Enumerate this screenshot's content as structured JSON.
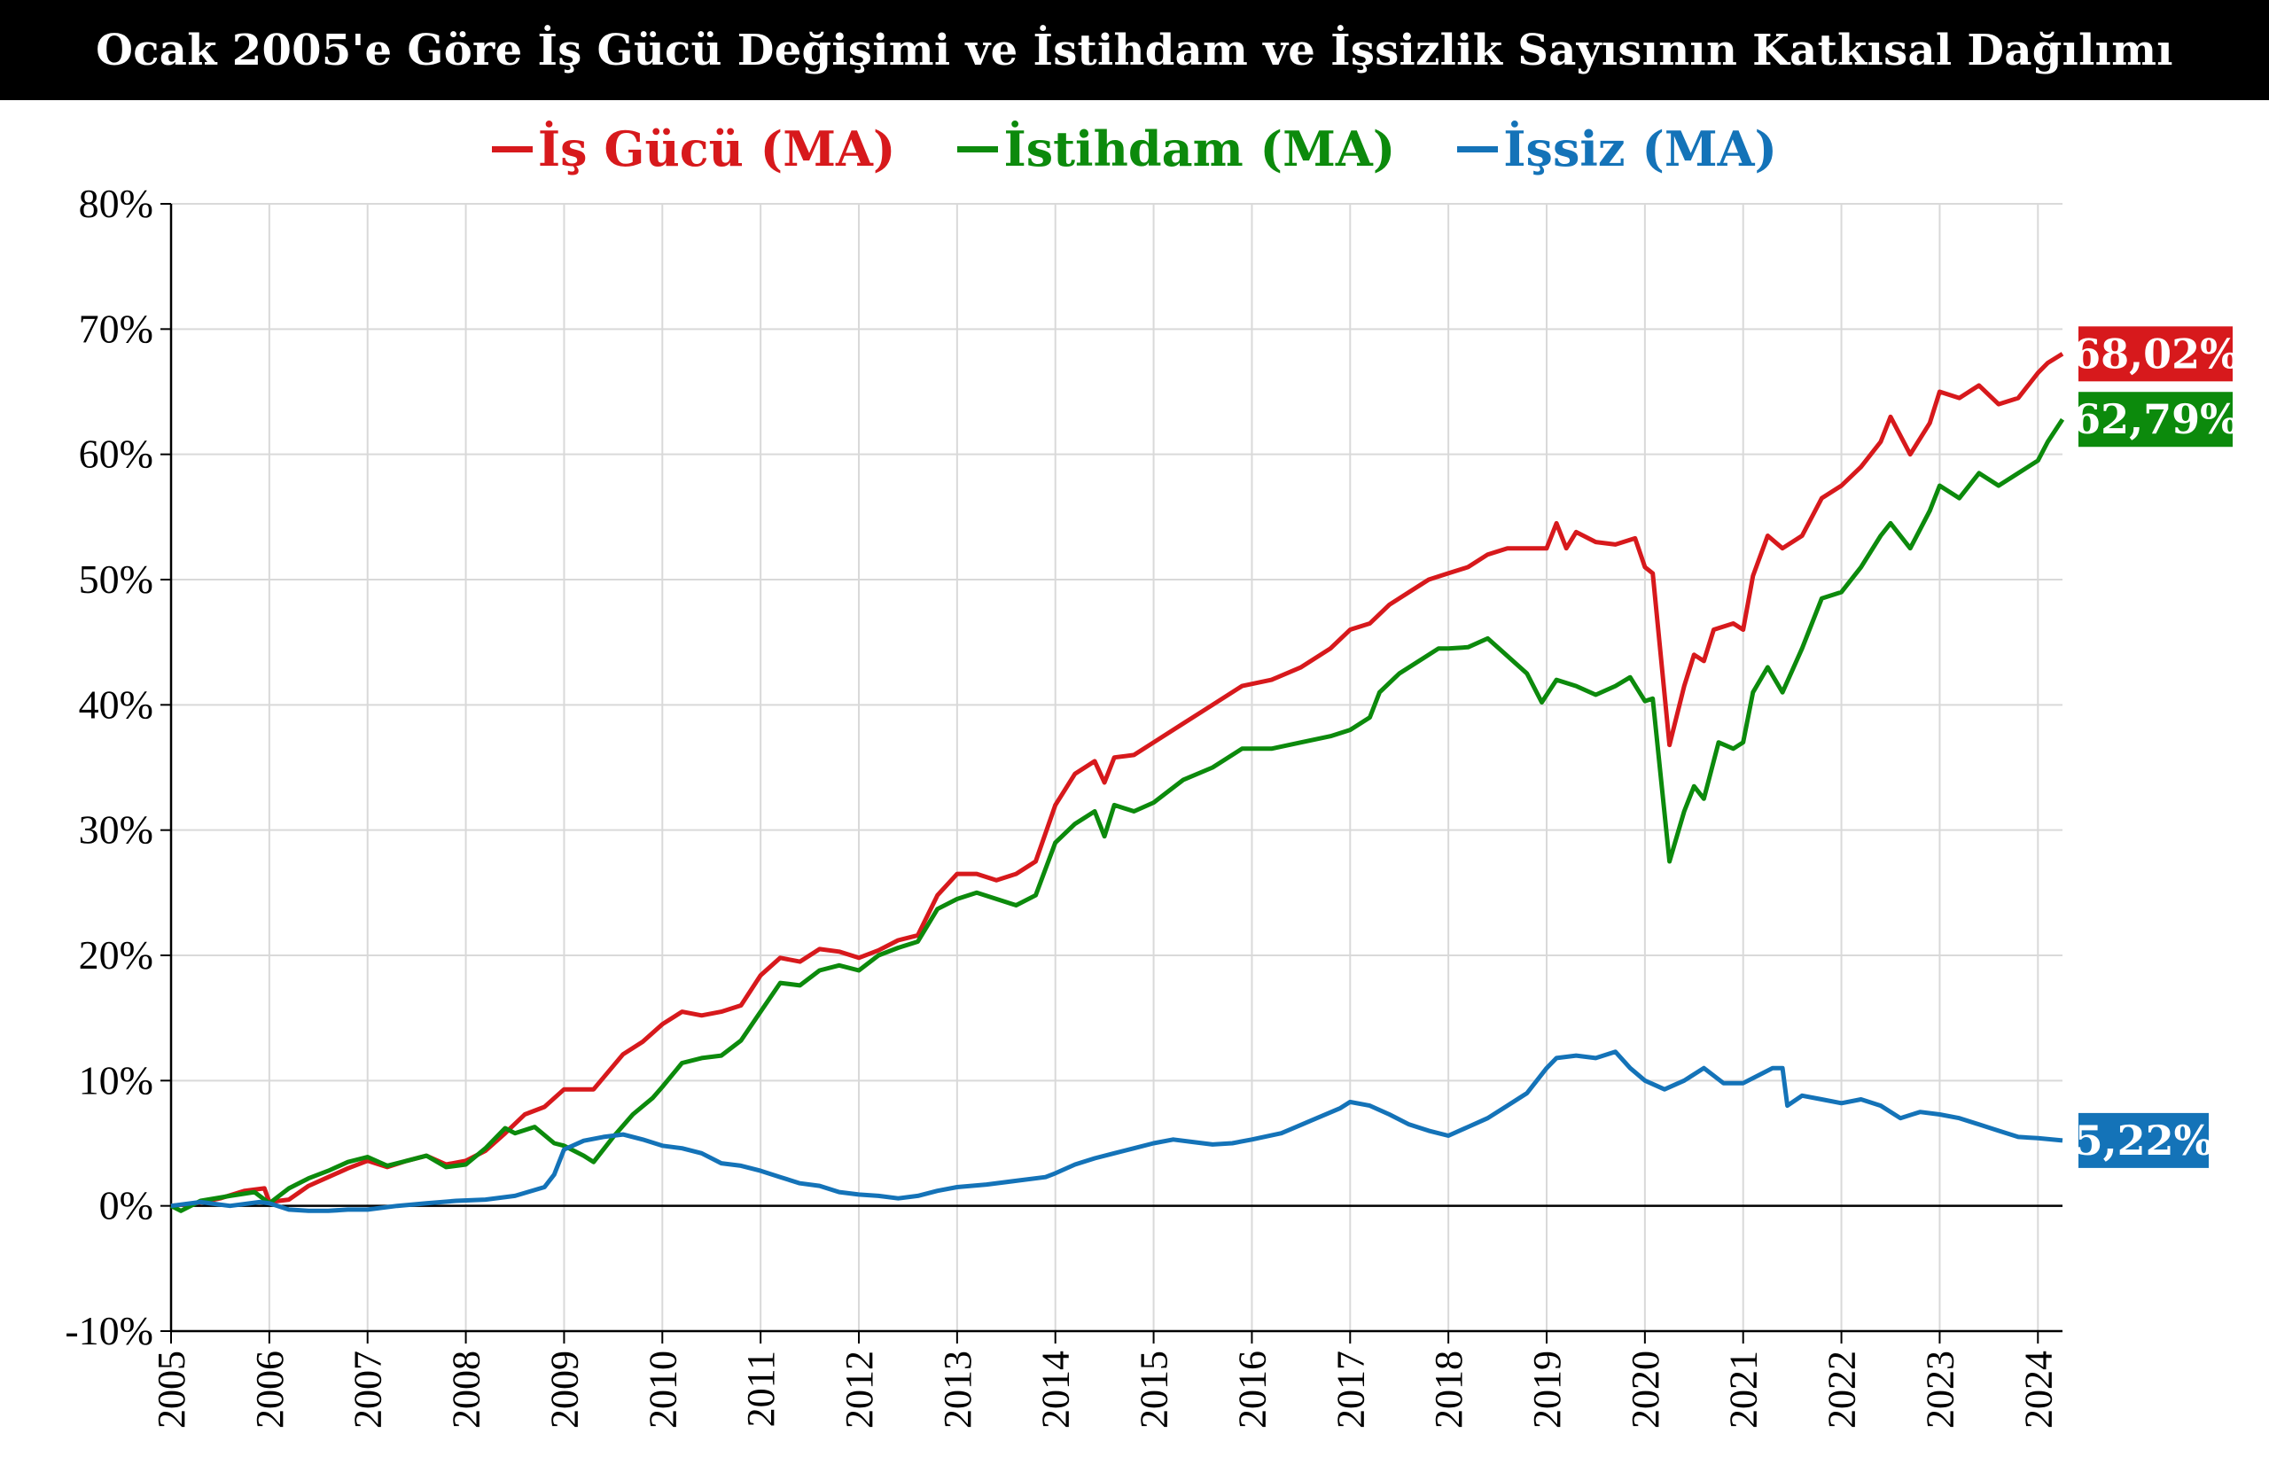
{
  "chart_data": {
    "type": "line",
    "title": "Ocak 2005'e Göre İş Gücü Değişimi ve İstihdam ve İşsizlik Sayısının Katkısal Dağılımı",
    "xlabel": "",
    "ylabel": "",
    "ylim": [
      -10,
      80
    ],
    "xlim": [
      2005,
      2024.25
    ],
    "y_ticks": [
      "-10%",
      "0%",
      "10%",
      "20%",
      "30%",
      "40%",
      "50%",
      "60%",
      "70%",
      "80%"
    ],
    "x_ticks": [
      "2005",
      "2006",
      "2007",
      "2008",
      "2009",
      "2010",
      "2011",
      "2012",
      "2013",
      "2014",
      "2015",
      "2016",
      "2017",
      "2018",
      "2019",
      "2020",
      "2021",
      "2022",
      "2023",
      "2024"
    ],
    "grid": true,
    "legend_position": "top-center",
    "series": [
      {
        "name": "İş Gücü (MA)",
        "color": "#d7191c",
        "end_label": "68,02%",
        "points": [
          [
            2005.0,
            0.0
          ],
          [
            2005.25,
            0.2
          ],
          [
            2005.5,
            0.6
          ],
          [
            2005.75,
            1.2
          ],
          [
            2005.95,
            1.4
          ],
          [
            2006.0,
            0.3
          ],
          [
            2006.2,
            0.5
          ],
          [
            2006.4,
            1.6
          ],
          [
            2006.6,
            2.3
          ],
          [
            2006.8,
            3.0
          ],
          [
            2007.0,
            3.6
          ],
          [
            2007.2,
            3.1
          ],
          [
            2007.4,
            3.6
          ],
          [
            2007.6,
            4.0
          ],
          [
            2007.8,
            3.3
          ],
          [
            2008.0,
            3.6
          ],
          [
            2008.2,
            4.4
          ],
          [
            2008.4,
            5.8
          ],
          [
            2008.6,
            7.3
          ],
          [
            2008.8,
            7.9
          ],
          [
            2009.0,
            9.3
          ],
          [
            2009.3,
            9.3
          ],
          [
            2009.6,
            12.1
          ],
          [
            2009.8,
            13.1
          ],
          [
            2010.0,
            14.5
          ],
          [
            2010.2,
            15.5
          ],
          [
            2010.4,
            15.2
          ],
          [
            2010.6,
            15.5
          ],
          [
            2010.8,
            16.0
          ],
          [
            2011.0,
            18.4
          ],
          [
            2011.2,
            19.8
          ],
          [
            2011.4,
            19.5
          ],
          [
            2011.6,
            20.5
          ],
          [
            2011.8,
            20.3
          ],
          [
            2012.0,
            19.8
          ],
          [
            2012.2,
            20.4
          ],
          [
            2012.4,
            21.2
          ],
          [
            2012.6,
            21.6
          ],
          [
            2012.8,
            24.8
          ],
          [
            2013.0,
            26.5
          ],
          [
            2013.2,
            26.5
          ],
          [
            2013.4,
            26.0
          ],
          [
            2013.6,
            26.5
          ],
          [
            2013.8,
            27.5
          ],
          [
            2014.0,
            32.0
          ],
          [
            2014.2,
            34.5
          ],
          [
            2014.4,
            35.5
          ],
          [
            2014.5,
            33.8
          ],
          [
            2014.6,
            35.8
          ],
          [
            2014.8,
            36.0
          ],
          [
            2015.0,
            37.0
          ],
          [
            2015.3,
            38.5
          ],
          [
            2015.6,
            40.0
          ],
          [
            2015.9,
            41.5
          ],
          [
            2016.2,
            42.0
          ],
          [
            2016.5,
            43.0
          ],
          [
            2016.8,
            44.5
          ],
          [
            2017.0,
            46.0
          ],
          [
            2017.2,
            46.5
          ],
          [
            2017.4,
            48.0
          ],
          [
            2017.6,
            49.0
          ],
          [
            2017.8,
            50.0
          ],
          [
            2018.0,
            50.5
          ],
          [
            2018.2,
            51.0
          ],
          [
            2018.4,
            52.0
          ],
          [
            2018.6,
            52.5
          ],
          [
            2018.8,
            52.5
          ],
          [
            2019.0,
            52.5
          ],
          [
            2019.1,
            54.5
          ],
          [
            2019.2,
            52.5
          ],
          [
            2019.3,
            53.8
          ],
          [
            2019.5,
            53.0
          ],
          [
            2019.7,
            52.8
          ],
          [
            2019.9,
            53.3
          ],
          [
            2020.0,
            51.0
          ],
          [
            2020.08,
            50.5
          ],
          [
            2020.25,
            36.8
          ],
          [
            2020.4,
            41.5
          ],
          [
            2020.5,
            44.0
          ],
          [
            2020.6,
            43.5
          ],
          [
            2020.7,
            46.0
          ],
          [
            2020.9,
            46.5
          ],
          [
            2021.0,
            46.0
          ],
          [
            2021.1,
            50.3
          ],
          [
            2021.25,
            53.5
          ],
          [
            2021.4,
            52.5
          ],
          [
            2021.6,
            53.5
          ],
          [
            2021.8,
            56.5
          ],
          [
            2022.0,
            57.5
          ],
          [
            2022.2,
            59.0
          ],
          [
            2022.4,
            61.0
          ],
          [
            2022.5,
            63.0
          ],
          [
            2022.7,
            60.0
          ],
          [
            2022.9,
            62.5
          ],
          [
            2023.0,
            65.0
          ],
          [
            2023.2,
            64.5
          ],
          [
            2023.4,
            65.5
          ],
          [
            2023.6,
            64.0
          ],
          [
            2023.8,
            64.5
          ],
          [
            2024.0,
            66.5
          ],
          [
            2024.1,
            67.3
          ],
          [
            2024.25,
            68.02
          ]
        ]
      },
      {
        "name": "İstihdam (MA)",
        "color": "#0c8a0c",
        "end_label": "62,79%",
        "points": [
          [
            2005.0,
            0.0
          ],
          [
            2005.1,
            -0.4
          ],
          [
            2005.3,
            0.4
          ],
          [
            2005.6,
            0.8
          ],
          [
            2005.85,
            1.1
          ],
          [
            2006.0,
            0.2
          ],
          [
            2006.2,
            1.4
          ],
          [
            2006.4,
            2.2
          ],
          [
            2006.6,
            2.8
          ],
          [
            2006.8,
            3.5
          ],
          [
            2007.0,
            3.9
          ],
          [
            2007.2,
            3.2
          ],
          [
            2007.4,
            3.6
          ],
          [
            2007.6,
            4.0
          ],
          [
            2007.8,
            3.1
          ],
          [
            2008.0,
            3.3
          ],
          [
            2008.2,
            4.6
          ],
          [
            2008.4,
            6.2
          ],
          [
            2008.5,
            5.8
          ],
          [
            2008.7,
            6.3
          ],
          [
            2008.9,
            5.0
          ],
          [
            2009.0,
            4.8
          ],
          [
            2009.2,
            4.0
          ],
          [
            2009.3,
            3.5
          ],
          [
            2009.5,
            5.5
          ],
          [
            2009.7,
            7.3
          ],
          [
            2009.9,
            8.6
          ],
          [
            2010.0,
            9.5
          ],
          [
            2010.2,
            11.4
          ],
          [
            2010.4,
            11.8
          ],
          [
            2010.6,
            12.0
          ],
          [
            2010.8,
            13.2
          ],
          [
            2011.0,
            15.5
          ],
          [
            2011.2,
            17.8
          ],
          [
            2011.4,
            17.6
          ],
          [
            2011.6,
            18.8
          ],
          [
            2011.8,
            19.2
          ],
          [
            2012.0,
            18.8
          ],
          [
            2012.2,
            20.0
          ],
          [
            2012.4,
            20.6
          ],
          [
            2012.6,
            21.1
          ],
          [
            2012.8,
            23.7
          ],
          [
            2013.0,
            24.5
          ],
          [
            2013.2,
            25.0
          ],
          [
            2013.4,
            24.5
          ],
          [
            2013.6,
            24.0
          ],
          [
            2013.8,
            24.8
          ],
          [
            2014.0,
            29.0
          ],
          [
            2014.2,
            30.5
          ],
          [
            2014.4,
            31.5
          ],
          [
            2014.5,
            29.5
          ],
          [
            2014.6,
            32.0
          ],
          [
            2014.8,
            31.5
          ],
          [
            2015.0,
            32.2
          ],
          [
            2015.3,
            34.0
          ],
          [
            2015.6,
            35.0
          ],
          [
            2015.9,
            36.5
          ],
          [
            2016.2,
            36.5
          ],
          [
            2016.5,
            37.0
          ],
          [
            2016.8,
            37.5
          ],
          [
            2017.0,
            38.0
          ],
          [
            2017.2,
            39.0
          ],
          [
            2017.3,
            41.0
          ],
          [
            2017.5,
            42.5
          ],
          [
            2017.7,
            43.5
          ],
          [
            2017.9,
            44.5
          ],
          [
            2018.0,
            44.5
          ],
          [
            2018.2,
            44.6
          ],
          [
            2018.4,
            45.3
          ],
          [
            2018.5,
            44.6
          ],
          [
            2018.8,
            42.5
          ],
          [
            2018.95,
            40.2
          ],
          [
            2019.1,
            42.0
          ],
          [
            2019.3,
            41.5
          ],
          [
            2019.5,
            40.8
          ],
          [
            2019.7,
            41.5
          ],
          [
            2019.85,
            42.2
          ],
          [
            2020.0,
            40.3
          ],
          [
            2020.08,
            40.5
          ],
          [
            2020.25,
            27.5
          ],
          [
            2020.4,
            31.5
          ],
          [
            2020.5,
            33.5
          ],
          [
            2020.6,
            32.5
          ],
          [
            2020.75,
            37.0
          ],
          [
            2020.9,
            36.5
          ],
          [
            2021.0,
            37.0
          ],
          [
            2021.1,
            41.0
          ],
          [
            2021.25,
            43.0
          ],
          [
            2021.4,
            41.0
          ],
          [
            2021.6,
            44.5
          ],
          [
            2021.8,
            48.5
          ],
          [
            2022.0,
            49.0
          ],
          [
            2022.2,
            51.0
          ],
          [
            2022.4,
            53.5
          ],
          [
            2022.5,
            54.5
          ],
          [
            2022.7,
            52.5
          ],
          [
            2022.9,
            55.5
          ],
          [
            2023.0,
            57.5
          ],
          [
            2023.2,
            56.5
          ],
          [
            2023.4,
            58.5
          ],
          [
            2023.6,
            57.5
          ],
          [
            2023.8,
            58.5
          ],
          [
            2024.0,
            59.5
          ],
          [
            2024.1,
            61.0
          ],
          [
            2024.25,
            62.79
          ]
        ]
      },
      {
        "name": "İşsiz (MA)",
        "color": "#1473b8",
        "end_label": "5,22%",
        "points": [
          [
            2005.0,
            0.0
          ],
          [
            2005.3,
            0.3
          ],
          [
            2005.6,
            0.0
          ],
          [
            2005.9,
            0.3
          ],
          [
            2006.0,
            0.2
          ],
          [
            2006.2,
            -0.3
          ],
          [
            2006.4,
            -0.4
          ],
          [
            2006.6,
            -0.4
          ],
          [
            2006.8,
            -0.3
          ],
          [
            2007.0,
            -0.3
          ],
          [
            2007.3,
            0.0
          ],
          [
            2007.6,
            0.2
          ],
          [
            2007.9,
            0.4
          ],
          [
            2008.2,
            0.5
          ],
          [
            2008.5,
            0.8
          ],
          [
            2008.8,
            1.5
          ],
          [
            2008.9,
            2.5
          ],
          [
            2009.0,
            4.5
          ],
          [
            2009.2,
            5.2
          ],
          [
            2009.4,
            5.5
          ],
          [
            2009.6,
            5.7
          ],
          [
            2009.8,
            5.3
          ],
          [
            2010.0,
            4.8
          ],
          [
            2010.2,
            4.6
          ],
          [
            2010.4,
            4.2
          ],
          [
            2010.6,
            3.4
          ],
          [
            2010.8,
            3.2
          ],
          [
            2011.0,
            2.8
          ],
          [
            2011.2,
            2.3
          ],
          [
            2011.4,
            1.8
          ],
          [
            2011.6,
            1.6
          ],
          [
            2011.8,
            1.1
          ],
          [
            2012.0,
            0.9
          ],
          [
            2012.2,
            0.8
          ],
          [
            2012.4,
            0.6
          ],
          [
            2012.6,
            0.8
          ],
          [
            2012.8,
            1.2
          ],
          [
            2013.0,
            1.5
          ],
          [
            2013.3,
            1.7
          ],
          [
            2013.6,
            2.0
          ],
          [
            2013.9,
            2.3
          ],
          [
            2014.0,
            2.6
          ],
          [
            2014.2,
            3.3
          ],
          [
            2014.4,
            3.8
          ],
          [
            2014.6,
            4.2
          ],
          [
            2014.8,
            4.6
          ],
          [
            2015.0,
            5.0
          ],
          [
            2015.2,
            5.3
          ],
          [
            2015.4,
            5.1
          ],
          [
            2015.6,
            4.9
          ],
          [
            2015.8,
            5.0
          ],
          [
            2016.0,
            5.3
          ],
          [
            2016.3,
            5.8
          ],
          [
            2016.6,
            6.8
          ],
          [
            2016.9,
            7.8
          ],
          [
            2017.0,
            8.3
          ],
          [
            2017.2,
            8.0
          ],
          [
            2017.4,
            7.3
          ],
          [
            2017.6,
            6.5
          ],
          [
            2017.8,
            6.0
          ],
          [
            2018.0,
            5.6
          ],
          [
            2018.2,
            6.3
          ],
          [
            2018.4,
            7.0
          ],
          [
            2018.6,
            8.0
          ],
          [
            2018.8,
            9.0
          ],
          [
            2019.0,
            11.0
          ],
          [
            2019.1,
            11.8
          ],
          [
            2019.3,
            12.0
          ],
          [
            2019.5,
            11.8
          ],
          [
            2019.7,
            12.3
          ],
          [
            2019.85,
            11.0
          ],
          [
            2020.0,
            10.0
          ],
          [
            2020.2,
            9.3
          ],
          [
            2020.4,
            10.0
          ],
          [
            2020.6,
            11.0
          ],
          [
            2020.8,
            9.8
          ],
          [
            2021.0,
            9.8
          ],
          [
            2021.2,
            10.6
          ],
          [
            2021.3,
            11.0
          ],
          [
            2021.4,
            11.0
          ],
          [
            2021.45,
            8.0
          ],
          [
            2021.6,
            8.8
          ],
          [
            2021.8,
            8.5
          ],
          [
            2022.0,
            8.2
          ],
          [
            2022.2,
            8.5
          ],
          [
            2022.4,
            8.0
          ],
          [
            2022.6,
            7.0
          ],
          [
            2022.8,
            7.5
          ],
          [
            2023.0,
            7.3
          ],
          [
            2023.2,
            7.0
          ],
          [
            2023.4,
            6.5
          ],
          [
            2023.6,
            6.0
          ],
          [
            2023.8,
            5.5
          ],
          [
            2024.0,
            5.4
          ],
          [
            2024.25,
            5.22
          ]
        ]
      }
    ]
  }
}
